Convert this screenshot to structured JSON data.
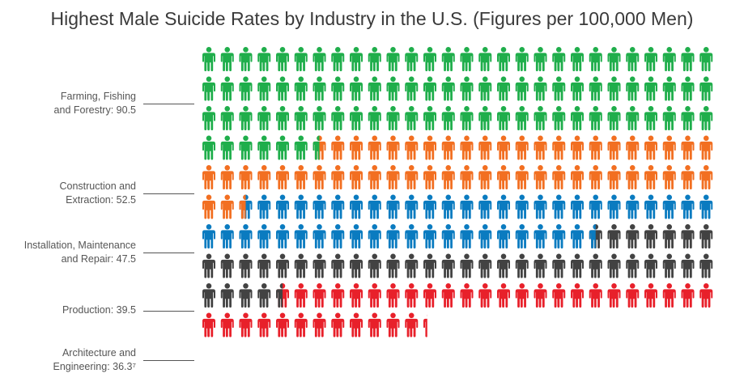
{
  "chart_data": {
    "type": "pictogram",
    "title": "Highest Male Suicide Rates by Industry in the U.S. (Figures per 100,000 Men)",
    "categories": [
      {
        "label_line1": "Farming, Fishing",
        "label_line2": "and Forestry: 90.5",
        "value": 90.5,
        "color": "#1fae4b"
      },
      {
        "label_line1": "Construction and",
        "label_line2": "Extraction: 52.5",
        "value": 52.5,
        "color": "#f26f21"
      },
      {
        "label_line1": "Installation, Maintenance",
        "label_line2": "and Repair: 47.5",
        "value": 47.5,
        "color": "#0a7bc0"
      },
      {
        "label_line1": "Production: 39.5",
        "label_line2": "",
        "value": 39.5,
        "color": "#424242"
      },
      {
        "label_line1": "Architecture and",
        "label_line2": "Engineering: 36.3⁷",
        "value": 36.3,
        "color": "#e8202a"
      }
    ],
    "grid_columns": 28,
    "unit": "one figure per person per 100,000 men"
  }
}
